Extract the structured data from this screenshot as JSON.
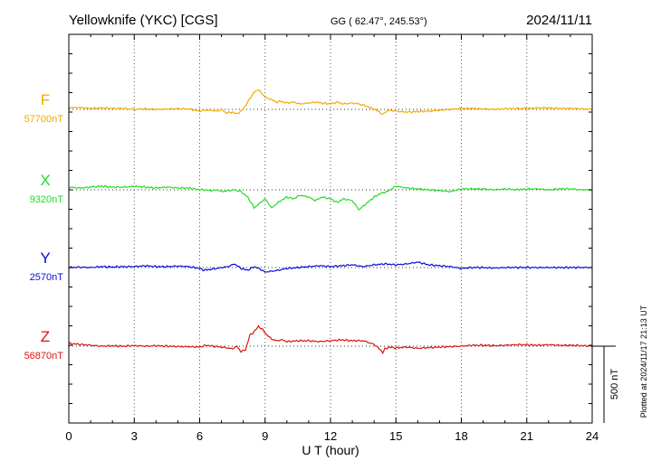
{
  "header": {
    "station": "Yellowknife (YKC)  [CGS]",
    "coords": "GG ( 62.47°, 245.53°)",
    "date": "2024/11/11"
  },
  "footer": {
    "plotted": "Plotted at 2024/11/17 21:13 UT"
  },
  "chart_data": {
    "type": "line",
    "xlabel": "U T (hour)",
    "xlim": [
      0,
      24
    ],
    "xticks": [
      0,
      3,
      6,
      9,
      12,
      15,
      18,
      21,
      24
    ],
    "grid": true,
    "scale_bar": {
      "label": "500 nT",
      "value_nT": 500
    },
    "series": [
      {
        "name": "F",
        "baseline": "57700nT",
        "color": "#f5a800",
        "x": [
          0,
          0.5,
          1,
          1.5,
          2,
          2.5,
          3,
          3.5,
          4,
          4.5,
          5,
          5.5,
          6,
          6.2,
          6.5,
          6.8,
          7,
          7.2,
          7.5,
          7.7,
          7.9,
          8.1,
          8.3,
          8.5,
          8.7,
          8.9,
          9.1,
          9.3,
          9.5,
          9.7,
          10,
          10.3,
          10.6,
          11,
          11.3,
          11.6,
          12,
          12.3,
          12.6,
          13,
          13.3,
          13.6,
          14,
          14.2,
          14.4,
          14.5,
          14.7,
          15,
          15.5,
          16,
          16.5,
          17,
          17.5,
          18,
          18.5,
          19,
          19.5,
          20,
          20.5,
          21,
          21.5,
          22,
          22.5,
          23,
          23.5,
          24
        ],
        "values": [
          10,
          10,
          5,
          8,
          5,
          5,
          0,
          2,
          0,
          2,
          4,
          2,
          -10,
          -5,
          -5,
          -10,
          0,
          -20,
          -15,
          -25,
          -10,
          20,
          60,
          95,
          110,
          80,
          60,
          55,
          40,
          45,
          35,
          40,
          30,
          35,
          40,
          35,
          30,
          40,
          30,
          35,
          30,
          20,
          0,
          -10,
          -30,
          -15,
          -5,
          -10,
          -15,
          -12,
          -10,
          -5,
          0,
          5,
          5,
          3,
          0,
          3,
          5,
          5,
          8,
          8,
          5,
          5,
          3,
          0
        ]
      },
      {
        "name": "X",
        "baseline": "9320nT",
        "color": "#22dd22",
        "x": [
          0,
          0.5,
          1,
          1.5,
          2,
          2.5,
          3,
          3.5,
          4,
          4.5,
          5,
          5.5,
          6,
          6.2,
          6.5,
          6.8,
          7,
          7.3,
          7.6,
          7.9,
          8.2,
          8.5,
          8.8,
          9,
          9.3,
          9.6,
          10,
          10.3,
          10.6,
          11,
          11.3,
          11.6,
          12,
          12.3,
          12.6,
          13,
          13.3,
          13.6,
          14,
          14.3,
          14.6,
          15,
          15.5,
          16,
          16.5,
          17,
          17.5,
          18,
          18.5,
          19,
          19.5,
          20,
          20.5,
          21,
          21.5,
          22,
          22.5,
          23,
          23.5,
          24
        ],
        "values": [
          15,
          10,
          15,
          20,
          15,
          15,
          20,
          15,
          10,
          15,
          10,
          10,
          0,
          0,
          -5,
          0,
          -10,
          -5,
          0,
          -10,
          -40,
          -100,
          -70,
          -50,
          -100,
          -70,
          -40,
          -50,
          -30,
          -40,
          -60,
          -40,
          -50,
          -70,
          -50,
          -60,
          -110,
          -80,
          -40,
          -20,
          -10,
          20,
          10,
          5,
          0,
          -5,
          -10,
          5,
          5,
          5,
          0,
          5,
          0,
          5,
          5,
          0,
          5,
          5,
          0,
          0
        ]
      },
      {
        "name": "Y",
        "baseline": "2570nT",
        "color": "#0a0ad8",
        "x": [
          0,
          0.5,
          1,
          1.5,
          2,
          2.5,
          3,
          3.5,
          4,
          4.5,
          5,
          5.5,
          6,
          6.2,
          6.5,
          6.8,
          7,
          7.3,
          7.6,
          7.9,
          8.2,
          8.5,
          8.8,
          9,
          9.3,
          9.6,
          10,
          10.5,
          11,
          11.5,
          12,
          12.5,
          13,
          13.5,
          14,
          14.5,
          15,
          15.5,
          16,
          16.5,
          17,
          17.5,
          18,
          18.5,
          19,
          19.5,
          20,
          20.5,
          21,
          21.5,
          22,
          22.5,
          23,
          23.5,
          24
        ],
        "values": [
          0,
          2,
          0,
          5,
          3,
          5,
          5,
          10,
          5,
          5,
          8,
          5,
          -5,
          -15,
          -10,
          -5,
          0,
          5,
          20,
          -5,
          -15,
          5,
          -10,
          -25,
          -20,
          -15,
          -5,
          0,
          5,
          10,
          5,
          10,
          15,
          5,
          15,
          20,
          15,
          20,
          30,
          15,
          10,
          5,
          -5,
          0,
          0,
          -3,
          0,
          0,
          0,
          0,
          0,
          0,
          0,
          0,
          0
        ]
      },
      {
        "name": "Z",
        "baseline": "56870nT",
        "color": "#e01010",
        "x": [
          0,
          0.5,
          1,
          1.5,
          2,
          2.5,
          3,
          3.5,
          4,
          4.5,
          5,
          5.5,
          6,
          6.3,
          6.6,
          7,
          7.3,
          7.5,
          7.7,
          7.9,
          8.1,
          8.3,
          8.5,
          8.7,
          8.9,
          9.1,
          9.3,
          9.5,
          9.8,
          10,
          10.5,
          11,
          11.5,
          12,
          12.5,
          13,
          13.5,
          14,
          14.2,
          14.4,
          14.5,
          14.7,
          15,
          15.5,
          16,
          16.5,
          17,
          17.5,
          18,
          18.5,
          19,
          19.5,
          20,
          20.5,
          21,
          21.5,
          22,
          22.5,
          23,
          23.5,
          24
        ],
        "values": [
          15,
          10,
          5,
          0,
          2,
          0,
          3,
          0,
          2,
          0,
          -2,
          -3,
          -5,
          5,
          0,
          -5,
          -10,
          -15,
          0,
          -30,
          -20,
          60,
          80,
          110,
          90,
          60,
          40,
          30,
          35,
          25,
          30,
          30,
          25,
          30,
          35,
          30,
          30,
          10,
          -10,
          -35,
          -15,
          -5,
          -10,
          -5,
          -12,
          -8,
          -5,
          -3,
          0,
          5,
          5,
          3,
          5,
          8,
          8,
          5,
          8,
          5,
          5,
          3,
          0
        ]
      }
    ]
  }
}
